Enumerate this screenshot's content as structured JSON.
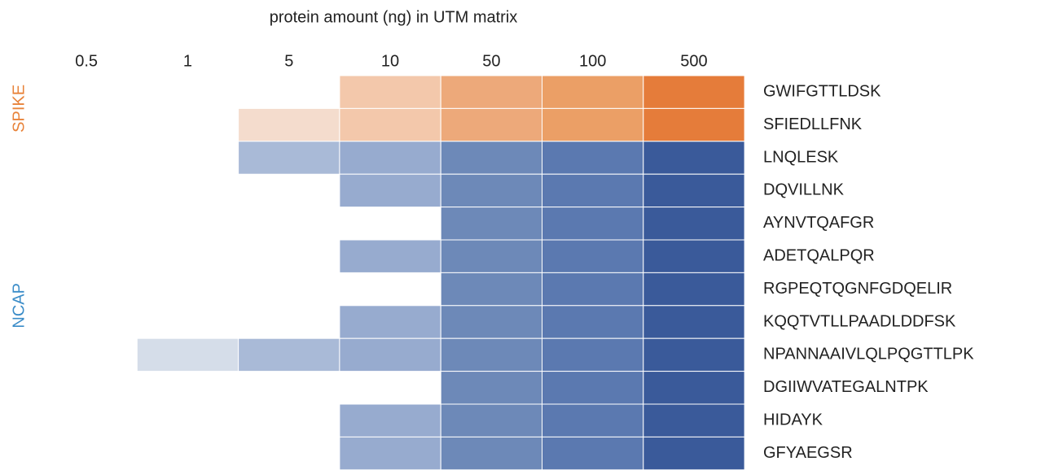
{
  "chart_data": {
    "type": "heatmap",
    "title": "protein amount (ng) in UTM matrix",
    "categories": [
      "0.5",
      "1",
      "5",
      "10",
      "50",
      "100",
      "500"
    ],
    "rows": [
      "GWIFGTTLDSK",
      "SFIEDLLFNK",
      "LNQLESK",
      "DQVILLNK",
      "AYNVTQAFGR",
      "ADETQALPQR",
      "RGPEQTQGNFGDQELIR",
      "KQQTVTLLPAADLDDFSK",
      "NPANNAAIVLQLPQGTTLPK",
      "DGIIWVATEGALNTPK",
      "HIDAYK",
      "GFYAEGSR"
    ],
    "groups": [
      {
        "name": "SPIKE",
        "color": "#e8833a",
        "start": 0,
        "end": 1,
        "cell_colors": [
          null,
          null,
          "#f4dccd",
          "#f3c8ab",
          "#eda97a",
          "#eb9f66",
          "#e57c3a"
        ]
      },
      {
        "name": "NCAP",
        "color": "#3a8cc8",
        "start": 2,
        "end": 11,
        "cell_colors": [
          null,
          "#d5dde9",
          "#a9bad7",
          "#97abcf",
          "#6d89b8",
          "#5b79b0",
          "#3a5a9a"
        ]
      }
    ],
    "values": [
      [
        0,
        0,
        0,
        1,
        1,
        1,
        1
      ],
      [
        0,
        0,
        1,
        1,
        1,
        1,
        1
      ],
      [
        0,
        0,
        1,
        1,
        1,
        1,
        1
      ],
      [
        0,
        0,
        0,
        1,
        1,
        1,
        1
      ],
      [
        0,
        0,
        0,
        0,
        1,
        1,
        1
      ],
      [
        0,
        0,
        0,
        1,
        1,
        1,
        1
      ],
      [
        0,
        0,
        0,
        0,
        1,
        1,
        1
      ],
      [
        0,
        0,
        0,
        1,
        1,
        1,
        1
      ],
      [
        0,
        1,
        1,
        1,
        1,
        1,
        1
      ],
      [
        0,
        0,
        0,
        0,
        1,
        1,
        1
      ],
      [
        0,
        0,
        0,
        1,
        1,
        1,
        1
      ],
      [
        0,
        0,
        0,
        1,
        1,
        1,
        1
      ]
    ]
  }
}
